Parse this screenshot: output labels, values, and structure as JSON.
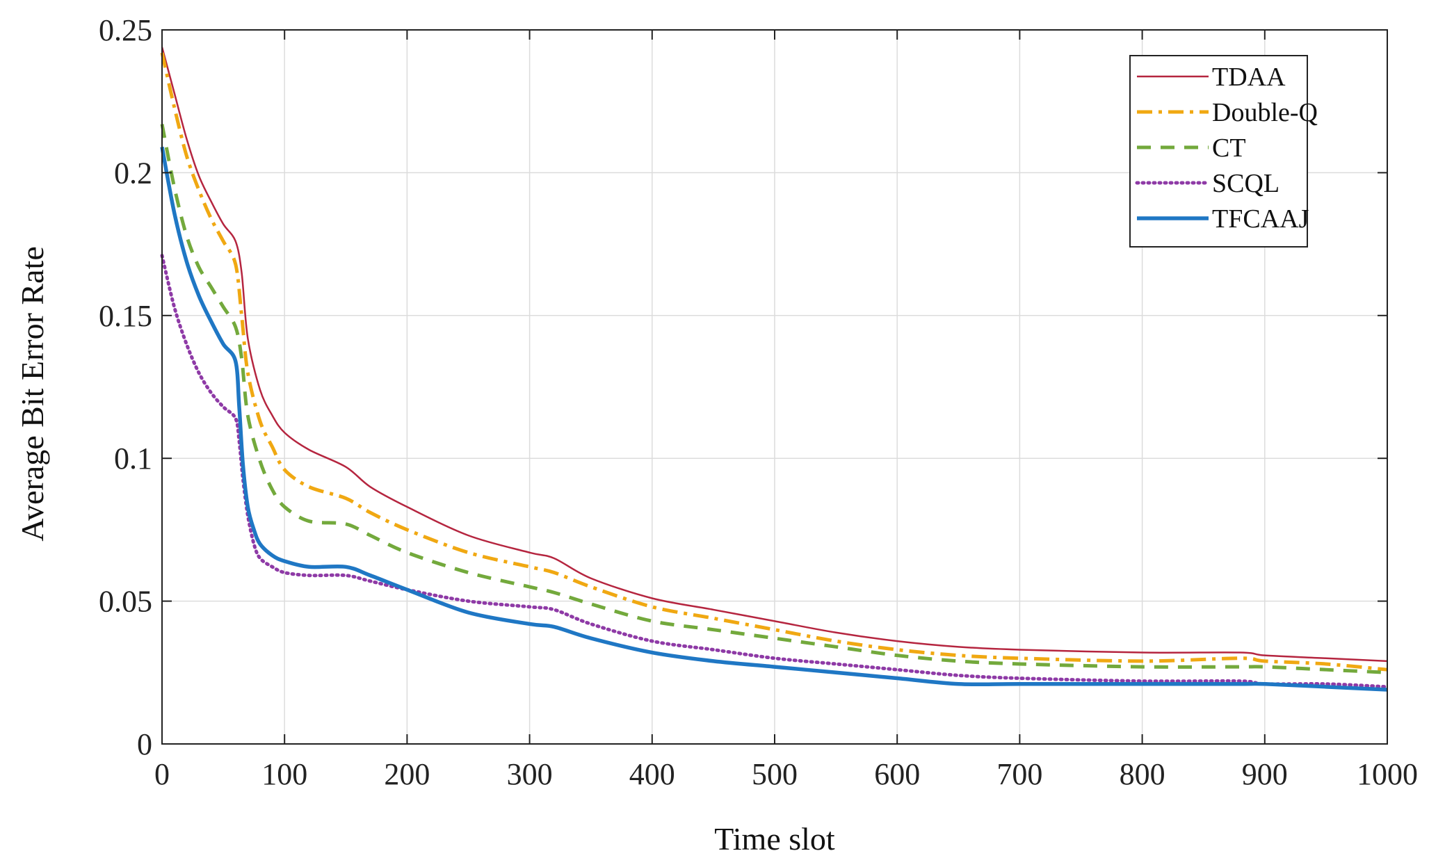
{
  "chart_data": {
    "type": "line",
    "title": "",
    "xlabel": "Time slot",
    "ylabel": "Average Bit Error Rate",
    "xlim": [
      0,
      1000
    ],
    "ylim": [
      0,
      0.25
    ],
    "xticks": [
      0,
      100,
      200,
      300,
      400,
      500,
      600,
      700,
      800,
      900,
      1000
    ],
    "yticks": [
      0,
      0.05,
      0.1,
      0.15,
      0.2,
      0.25
    ],
    "xtick_labels": [
      "0",
      "100",
      "200",
      "300",
      "400",
      "500",
      "600",
      "700",
      "800",
      "900",
      "1000"
    ],
    "ytick_labels": [
      "0",
      "0.05",
      "0.1",
      "0.15",
      "0.2",
      "0.25"
    ],
    "grid": true,
    "legend_position": "top-right",
    "series": [
      {
        "name": "TDAA",
        "color": "#b5253f",
        "style": "solid",
        "x": [
          0,
          10,
          20,
          30,
          40,
          50,
          60,
          65,
          70,
          80,
          90,
          100,
          120,
          150,
          170,
          200,
          250,
          300,
          320,
          350,
          400,
          450,
          500,
          550,
          600,
          650,
          700,
          800,
          880,
          900,
          950,
          1000
        ],
        "y": [
          0.244,
          0.228,
          0.212,
          0.199,
          0.19,
          0.182,
          0.176,
          0.165,
          0.142,
          0.124,
          0.115,
          0.109,
          0.103,
          0.097,
          0.09,
          0.083,
          0.073,
          0.067,
          0.065,
          0.058,
          0.051,
          0.047,
          0.043,
          0.039,
          0.036,
          0.034,
          0.033,
          0.032,
          0.032,
          0.031,
          0.03,
          0.029
        ]
      },
      {
        "name": "Double-Q",
        "color": "#f0a812",
        "style": "dashdot",
        "x": [
          0,
          10,
          20,
          30,
          40,
          50,
          60,
          65,
          70,
          80,
          90,
          100,
          120,
          150,
          170,
          200,
          250,
          300,
          320,
          350,
          400,
          450,
          500,
          550,
          600,
          650,
          700,
          800,
          880,
          900,
          950,
          1000
        ],
        "y": [
          0.242,
          0.223,
          0.206,
          0.194,
          0.184,
          0.176,
          0.168,
          0.15,
          0.13,
          0.113,
          0.104,
          0.096,
          0.09,
          0.086,
          0.081,
          0.075,
          0.067,
          0.062,
          0.06,
          0.055,
          0.048,
          0.044,
          0.04,
          0.036,
          0.033,
          0.031,
          0.03,
          0.029,
          0.03,
          0.029,
          0.028,
          0.026
        ]
      },
      {
        "name": "CT",
        "color": "#73a93c",
        "style": "dashed",
        "x": [
          0,
          10,
          20,
          30,
          40,
          50,
          60,
          65,
          70,
          80,
          90,
          100,
          120,
          150,
          170,
          200,
          250,
          300,
          320,
          350,
          400,
          450,
          500,
          550,
          600,
          650,
          700,
          800,
          880,
          900,
          950,
          1000
        ],
        "y": [
          0.217,
          0.195,
          0.178,
          0.167,
          0.16,
          0.153,
          0.146,
          0.135,
          0.115,
          0.099,
          0.089,
          0.083,
          0.078,
          0.077,
          0.073,
          0.067,
          0.06,
          0.055,
          0.053,
          0.049,
          0.043,
          0.04,
          0.037,
          0.034,
          0.031,
          0.029,
          0.028,
          0.027,
          0.027,
          0.027,
          0.026,
          0.025
        ]
      },
      {
        "name": "SCQL",
        "color": "#8e3aa6",
        "style": "dotted",
        "x": [
          0,
          10,
          20,
          30,
          40,
          50,
          60,
          63,
          66,
          70,
          75,
          80,
          90,
          100,
          120,
          150,
          170,
          200,
          250,
          300,
          320,
          350,
          400,
          450,
          500,
          550,
          600,
          650,
          700,
          800,
          880,
          900,
          950,
          1000
        ],
        "y": [
          0.171,
          0.153,
          0.14,
          0.13,
          0.123,
          0.118,
          0.114,
          0.106,
          0.093,
          0.08,
          0.07,
          0.065,
          0.062,
          0.06,
          0.059,
          0.059,
          0.057,
          0.054,
          0.05,
          0.048,
          0.047,
          0.042,
          0.036,
          0.033,
          0.03,
          0.028,
          0.026,
          0.024,
          0.023,
          0.022,
          0.022,
          0.021,
          0.021,
          0.02
        ]
      },
      {
        "name": "TFCAAJ",
        "color": "#1f77c4",
        "style": "solid-thick",
        "x": [
          0,
          10,
          20,
          30,
          40,
          50,
          60,
          63,
          66,
          70,
          75,
          80,
          90,
          100,
          120,
          150,
          170,
          200,
          250,
          300,
          320,
          350,
          400,
          450,
          500,
          550,
          600,
          650,
          700,
          800,
          880,
          900,
          950,
          1000
        ],
        "y": [
          0.209,
          0.186,
          0.169,
          0.157,
          0.148,
          0.14,
          0.134,
          0.118,
          0.098,
          0.083,
          0.075,
          0.07,
          0.066,
          0.064,
          0.062,
          0.062,
          0.059,
          0.054,
          0.046,
          0.042,
          0.041,
          0.037,
          0.032,
          0.029,
          0.027,
          0.025,
          0.023,
          0.021,
          0.021,
          0.021,
          0.021,
          0.021,
          0.02,
          0.019
        ]
      }
    ]
  }
}
